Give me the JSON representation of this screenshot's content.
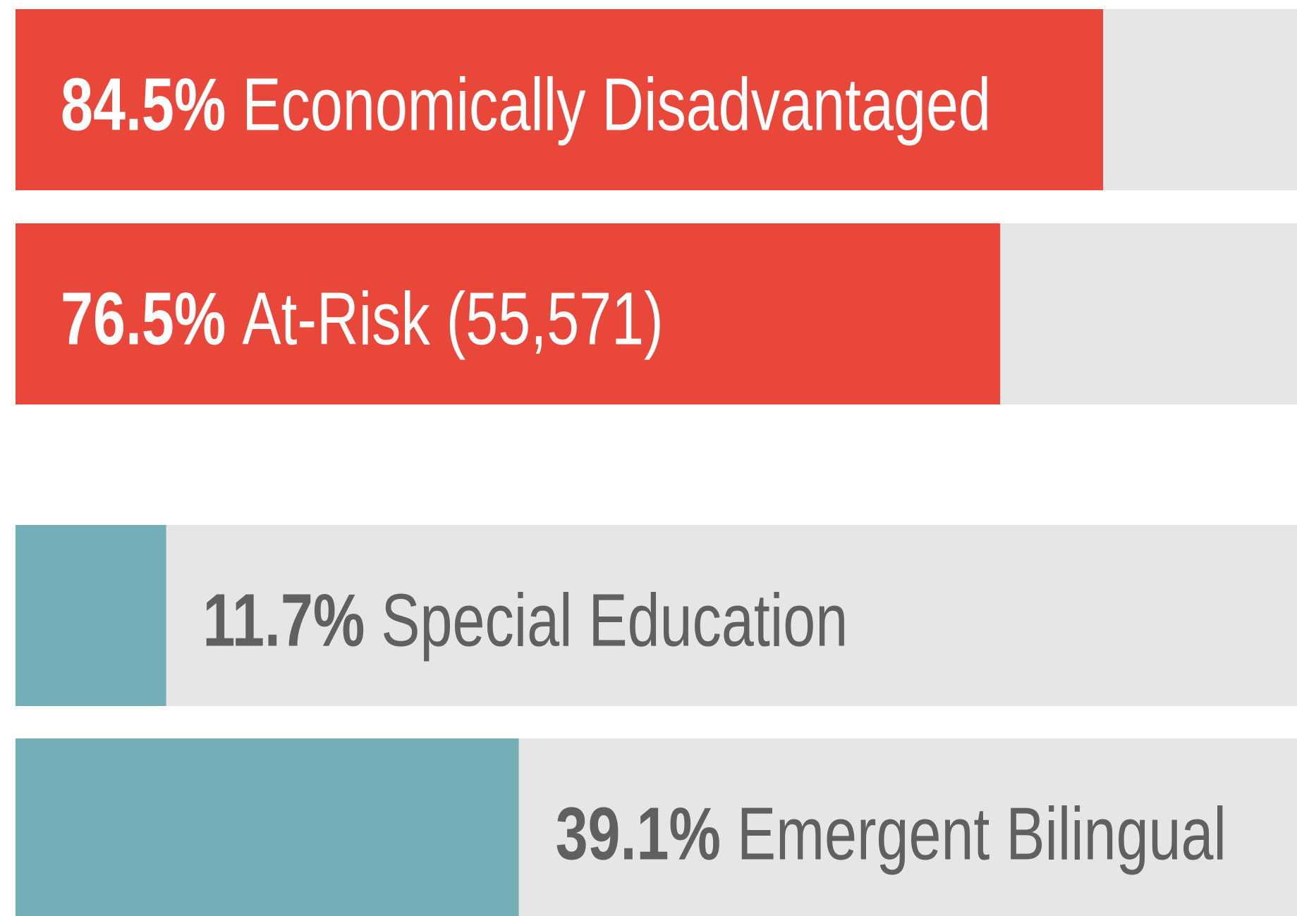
{
  "chart_data": {
    "type": "bar",
    "orientation": "horizontal",
    "categories": [
      "Economically Disadvantaged",
      "At-Risk (55,571)",
      "Special Education",
      "Emergent Bilingual"
    ],
    "values": [
      84.5,
      76.5,
      11.7,
      39.1
    ],
    "value_labels": [
      "84.5%",
      "76.5%",
      "11.7%",
      "39.1%"
    ],
    "colors": [
      "#e8473a",
      "#e8473a",
      "#74aeb6",
      "#74aeb6"
    ],
    "xlim": [
      0,
      100
    ]
  }
}
